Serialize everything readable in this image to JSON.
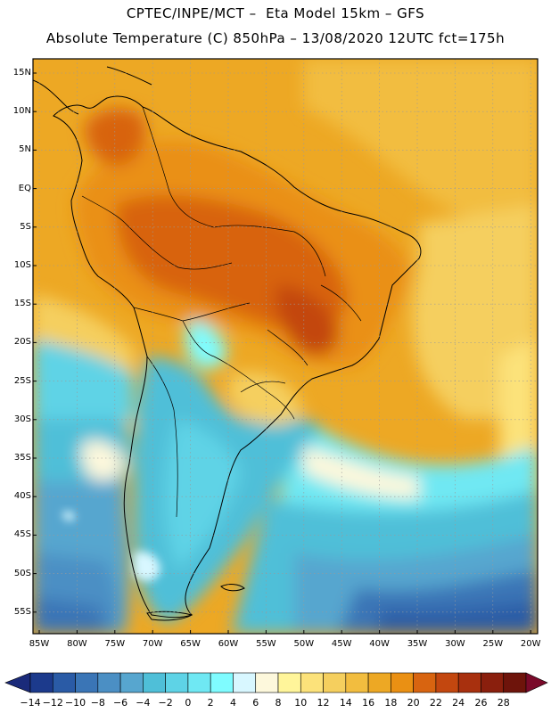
{
  "header": {
    "line1": "CPTEC/INPE/MCT –  Eta Model 15km – GFS",
    "line2": "Absolute Temperature (C) 850hPa – 13/08/2020 12UTC fct=175h"
  },
  "map": {
    "region": "South America",
    "lat_labels": [
      "15N",
      "10N",
      "5N",
      "EQ",
      "5S",
      "10S",
      "15S",
      "20S",
      "25S",
      "30S",
      "35S",
      "40S",
      "45S",
      "50S",
      "55S"
    ],
    "lon_labels": [
      "85W",
      "80W",
      "75W",
      "70W",
      "65W",
      "60W",
      "55W",
      "50W",
      "45W",
      "40W",
      "35W",
      "30W",
      "25W",
      "20W"
    ]
  },
  "colorbar": {
    "labels": [
      "-14",
      "-12",
      "-10",
      "-8",
      "-6",
      "-4",
      "-2",
      "0",
      "2",
      "4",
      "6",
      "8",
      "10",
      "12",
      "14",
      "16",
      "18",
      "20",
      "22",
      "24",
      "26",
      "28"
    ],
    "colors": [
      "#1c3a8c",
      "#2a5ba6",
      "#3a75b6",
      "#4b8fc4",
      "#57a6cf",
      "#4fbfd8",
      "#5ed3e6",
      "#6fe8f3",
      "#7ffcff",
      "#d8f7ff",
      "#fdf8dc",
      "#fff59a",
      "#fce27a",
      "#f5cf5e",
      "#f2bd3f",
      "#eda824",
      "#ea9013",
      "#d86410",
      "#c3470f",
      "#a8300e",
      "#8a1f0d",
      "#6e140b"
    ],
    "low_color": "#1a2a7a",
    "high_color": "#7a0a2a"
  }
}
